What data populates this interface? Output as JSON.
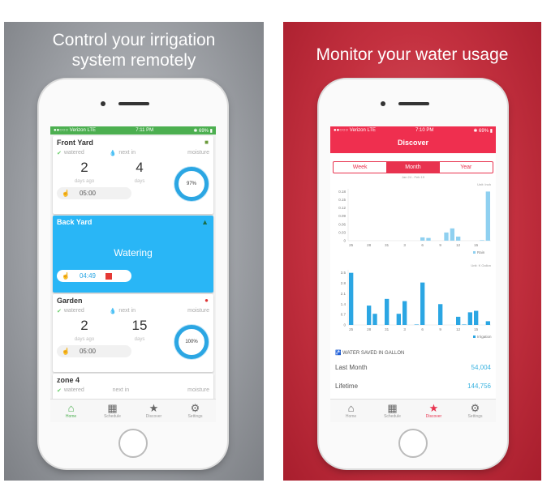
{
  "left": {
    "headline1": "Control your irrigation",
    "headline2": "system remotely",
    "status": {
      "carrier": "●●○○○ Verizon  LTE",
      "time": "7:11 PM",
      "battery": "✱ 69% ▮"
    },
    "zones": [
      {
        "name": "Front Yard",
        "watered": "watered",
        "next": "next in",
        "moisture": "moisture",
        "days_ago": "2",
        "days_ago_label": "days ago",
        "next_days": "4",
        "next_label": "days",
        "time": "05:00",
        "moisture_pct": "97%"
      },
      {
        "name": "Back Yard",
        "status": "Watering",
        "time": "04:49"
      },
      {
        "name": "Garden",
        "watered": "watered",
        "next": "next in",
        "moisture": "moisture",
        "days_ago": "2",
        "days_ago_label": "days ago",
        "next_days": "15",
        "next_label": "days",
        "time": "05:00",
        "moisture_pct": "100%"
      },
      {
        "name": "zone 4",
        "watered": "watered",
        "next": "next in",
        "moisture": "moisture"
      }
    ],
    "tabs": [
      "Home",
      "Schedule",
      "Discover",
      "Settings"
    ]
  },
  "right": {
    "headline": "Monitor your water usage",
    "status": {
      "carrier": "●●○○○ Verizon  LTE",
      "time": "7:10 PM",
      "battery": "✱ 69% ▮"
    },
    "title": "Discover",
    "segments": [
      "Week",
      "Month",
      "Year"
    ],
    "selected": "Month",
    "range": "Jan 24 - Feb 19",
    "saved_title": "WATER SAVED IN GALLON",
    "last_month_label": "Last Month",
    "last_month": "54,004",
    "lifetime_label": "Lifetime",
    "lifetime": "144,756",
    "tabs": [
      "Home",
      "Schedule",
      "Discover",
      "Settings"
    ]
  },
  "colors": {
    "green": "#4caf50",
    "blue": "#29b6f6",
    "red": "#e8334f",
    "bar": "#2ba6e3",
    "rain": "#8fd0f0"
  },
  "chart_data": [
    {
      "type": "bar",
      "unit": "Unit: Inch",
      "legend": "Rain",
      "yticks": [
        "0",
        "0.03",
        "0.06",
        "0.09",
        "0.12",
        "0.15",
        "0.18"
      ],
      "ylim": [
        0,
        0.19
      ],
      "xticks": [
        "25",
        "28",
        "31",
        "3",
        "6",
        "9",
        "12",
        "15"
      ],
      "categories": [
        "25",
        "26",
        "27",
        "28",
        "29",
        "30",
        "31",
        "1",
        "2",
        "3",
        "4",
        "5",
        "6",
        "7",
        "8",
        "9",
        "10",
        "11",
        "12",
        "13",
        "14",
        "15",
        "16",
        "17"
      ],
      "values": [
        0,
        0,
        0,
        0,
        0,
        0,
        0,
        0,
        0,
        0,
        0,
        0,
        0.012,
        0.01,
        0,
        0,
        0.03,
        0.045,
        0.015,
        0,
        0,
        0,
        0.002,
        0.18
      ]
    },
    {
      "type": "bar",
      "unit": "Unit: K Gallon",
      "legend": "Irrigation",
      "yticks": [
        "0",
        "0.7",
        "1.4",
        "2.1",
        "2.8",
        "3.5"
      ],
      "ylim": [
        0,
        3.7
      ],
      "xticks": [
        "25",
        "28",
        "31",
        "3",
        "6",
        "9",
        "12",
        "15"
      ],
      "categories": [
        "25",
        "26",
        "27",
        "28",
        "29",
        "30",
        "31",
        "1",
        "2",
        "3",
        "4",
        "5",
        "6",
        "7",
        "8",
        "9",
        "10",
        "11",
        "12",
        "13",
        "14",
        "15",
        "16",
        "17"
      ],
      "values": [
        3.5,
        0,
        0,
        1.3,
        0.75,
        0,
        1.75,
        0,
        0.75,
        1.6,
        0,
        0.03,
        2.85,
        0,
        0,
        1.4,
        0,
        0,
        0.55,
        0.03,
        0.85,
        0.95,
        0,
        0.25
      ]
    }
  ]
}
